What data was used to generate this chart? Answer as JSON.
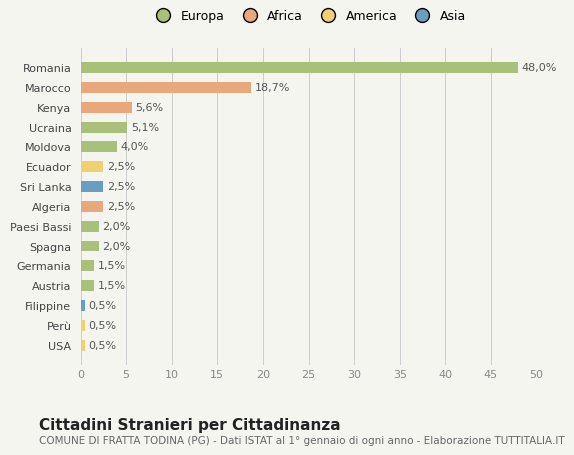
{
  "categories": [
    "Romania",
    "Marocco",
    "Kenya",
    "Ucraina",
    "Moldova",
    "Ecuador",
    "Sri Lanka",
    "Algeria",
    "Paesi Bassi",
    "Spagna",
    "Germania",
    "Austria",
    "Filippine",
    "Perù",
    "USA"
  ],
  "values": [
    48.0,
    18.7,
    5.6,
    5.1,
    4.0,
    2.5,
    2.5,
    2.5,
    2.0,
    2.0,
    1.5,
    1.5,
    0.5,
    0.5,
    0.5
  ],
  "labels": [
    "48,0%",
    "18,7%",
    "5,6%",
    "5,1%",
    "4,0%",
    "2,5%",
    "2,5%",
    "2,5%",
    "2,0%",
    "2,0%",
    "1,5%",
    "1,5%",
    "0,5%",
    "0,5%",
    "0,5%"
  ],
  "continents": [
    "Europa",
    "Africa",
    "Africa",
    "Europa",
    "Europa",
    "America",
    "Asia",
    "Africa",
    "Europa",
    "Europa",
    "Europa",
    "Europa",
    "Asia",
    "America",
    "America"
  ],
  "continent_colors": {
    "Europa": "#a8c07a",
    "Africa": "#e8a87c",
    "America": "#f0d070",
    "Asia": "#6a9ec0"
  },
  "legend_entries": [
    "Europa",
    "Africa",
    "America",
    "Asia"
  ],
  "legend_colors": [
    "#a8c07a",
    "#e8a87c",
    "#f0d070",
    "#6a9ec0"
  ],
  "xlim": [
    0,
    50
  ],
  "xticks": [
    0,
    5,
    10,
    15,
    20,
    25,
    30,
    35,
    40,
    45,
    50
  ],
  "title": "Cittadini Stranieri per Cittadinanza",
  "subtitle": "COMUNE DI FRATTA TODINA (PG) - Dati ISTAT al 1° gennaio di ogni anno - Elaborazione TUTTITALIA.IT",
  "background_color": "#f5f5f0",
  "bar_height": 0.55,
  "label_fontsize": 8,
  "tick_fontsize": 8,
  "title_fontsize": 11,
  "subtitle_fontsize": 7.5
}
